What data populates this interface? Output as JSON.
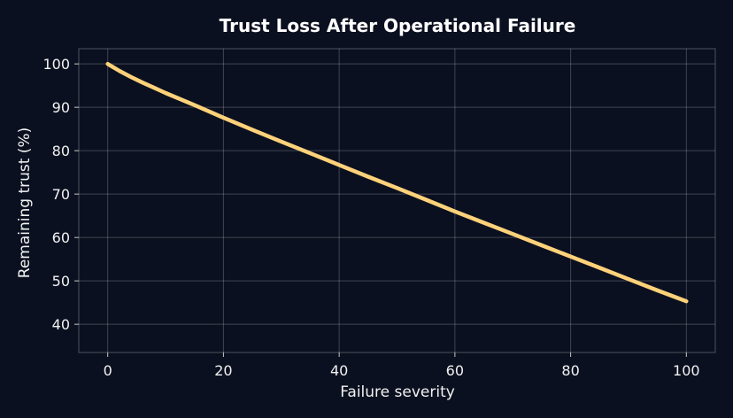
{
  "chart_data": {
    "type": "line",
    "title": "Trust Loss After Operational Failure",
    "xlabel": "Failure severity",
    "ylabel": "Remaining trust (%)",
    "xlim": [
      -5,
      105
    ],
    "ylim": [
      33.5,
      103.5
    ],
    "xticks": [
      0,
      20,
      40,
      60,
      80,
      100
    ],
    "yticks": [
      40,
      50,
      60,
      70,
      80,
      90,
      100
    ],
    "grid": true,
    "background_color": "#0b1020",
    "series": [
      {
        "color": "#ffd27a",
        "x": [
          0,
          2,
          4,
          6,
          8,
          10,
          15,
          20,
          25,
          30,
          35,
          40,
          45,
          50,
          55,
          60,
          65,
          70,
          75,
          80,
          85,
          90,
          95,
          100
        ],
        "y": [
          100,
          98.4,
          97.0,
          95.7,
          94.5,
          93.3,
          90.5,
          87.6,
          84.8,
          82.1,
          79.4,
          76.7,
          74.0,
          71.4,
          68.7,
          66.0,
          63.4,
          60.8,
          58.2,
          55.6,
          53.0,
          50.4,
          47.8,
          45.3
        ]
      }
    ]
  }
}
